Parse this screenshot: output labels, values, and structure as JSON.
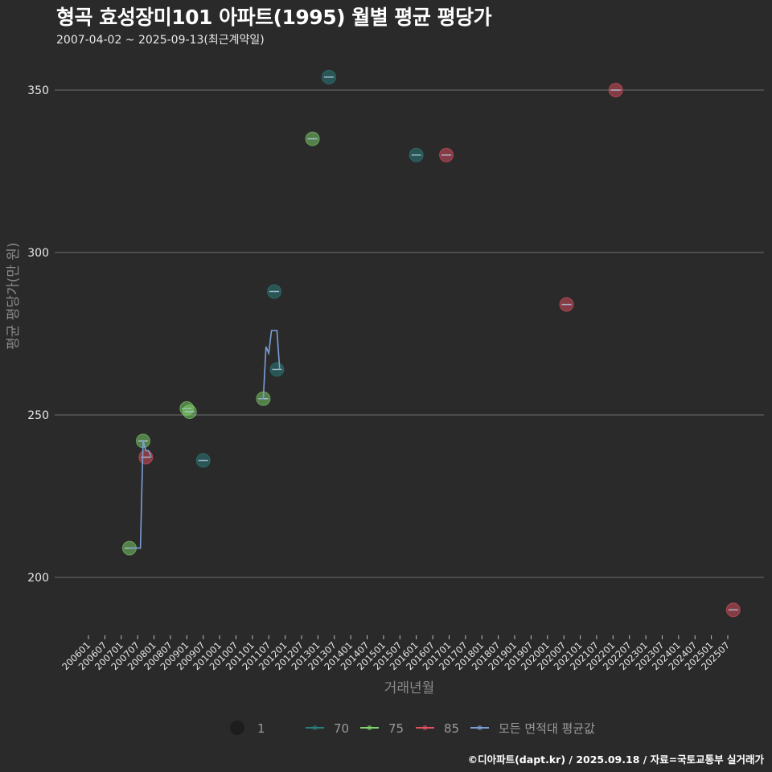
{
  "header": {
    "title": "형곡 효성장미101 아파트(1995) 월별 평균 평당가",
    "subtitle": "2007-04-02 ~ 2025-09-13(최근계약일)"
  },
  "footer": {
    "caption": "©디아파트(dapt.kr) / 2025.09.18 / 자료=국토교통부 실거래가"
  },
  "colors": {
    "background": "#2b2a2b",
    "grid": "#6e6e6e",
    "area_70": "#2a7f7f",
    "area_75": "#7fd36a",
    "area_85": "#e05060",
    "average": "#7b9fd4"
  },
  "chart_data": {
    "type": "scatter",
    "title": "형곡 효성장미101 아파트(1995) 월별 평균 평당가",
    "subtitle": "2007-04-02 ~ 2025-09-13(최근계약일)",
    "xlabel": "거래년월",
    "ylabel": "평균 평당가(만 원)",
    "ylim": [
      182,
      358
    ],
    "yticks": [
      200,
      250,
      300,
      350
    ],
    "grid": true,
    "legend_position": "bottom",
    "xticks": [
      "200601",
      "200607",
      "200701",
      "200707",
      "200801",
      "200807",
      "200901",
      "200907",
      "201001",
      "201007",
      "201101",
      "201107",
      "201201",
      "201207",
      "201301",
      "201307",
      "201401",
      "201407",
      "201501",
      "201507",
      "201601",
      "201607",
      "201701",
      "201707",
      "201801",
      "201807",
      "201901",
      "201907",
      "202001",
      "202007",
      "202101",
      "202107",
      "202201",
      "202207",
      "202301",
      "202307",
      "202401",
      "202407",
      "202501",
      "202507"
    ],
    "legend": [
      {
        "label": "1",
        "kind": "size"
      },
      {
        "label": "70",
        "color": "#2a7f7f"
      },
      {
        "label": "75",
        "color": "#7fd36a"
      },
      {
        "label": "85",
        "color": "#e05060"
      },
      {
        "label": "모든 면적대 평균값",
        "color": "#7b9fd4"
      }
    ],
    "series": [
      {
        "name": "70",
        "color": "#2a7f7f",
        "points": [
          {
            "x": "200907",
            "y": 236
          },
          {
            "x": "201109",
            "y": 288
          },
          {
            "x": "201110",
            "y": 264
          },
          {
            "x": "201305",
            "y": 354
          },
          {
            "x": "201601",
            "y": 330
          }
        ]
      },
      {
        "name": "75",
        "color": "#7fd36a",
        "points": [
          {
            "x": "200704",
            "y": 209
          },
          {
            "x": "200709",
            "y": 242
          },
          {
            "x": "200901",
            "y": 252
          },
          {
            "x": "200902",
            "y": 251
          },
          {
            "x": "201105",
            "y": 255
          },
          {
            "x": "201211",
            "y": 335
          }
        ]
      },
      {
        "name": "85",
        "color": "#e05060",
        "points": [
          {
            "x": "200710",
            "y": 237
          },
          {
            "x": "201612",
            "y": 330
          },
          {
            "x": "202008",
            "y": 284
          },
          {
            "x": "202202",
            "y": 350
          },
          {
            "x": "202509",
            "y": 190
          }
        ]
      },
      {
        "name": "모든 면적대 평균값",
        "color": "#7b9fd4",
        "type": "line",
        "points": [
          {
            "x": "200704",
            "y": 209
          },
          {
            "x": "200708",
            "y": 209
          },
          {
            "x": "200709",
            "y": 242
          },
          {
            "x": "200710",
            "y": 239
          },
          {
            "x": "200711",
            "y": 239
          },
          {
            "x": "200712",
            "y": 237
          },
          {
            "x": "201104",
            "y": 255
          },
          {
            "x": "201105",
            "y": 255
          },
          {
            "x": "201106",
            "y": 271
          },
          {
            "x": "201107",
            "y": 269
          },
          {
            "x": "201108",
            "y": 276
          },
          {
            "x": "201109",
            "y": 276
          },
          {
            "x": "201110",
            "y": 276
          },
          {
            "x": "201111",
            "y": 264
          }
        ]
      }
    ]
  }
}
